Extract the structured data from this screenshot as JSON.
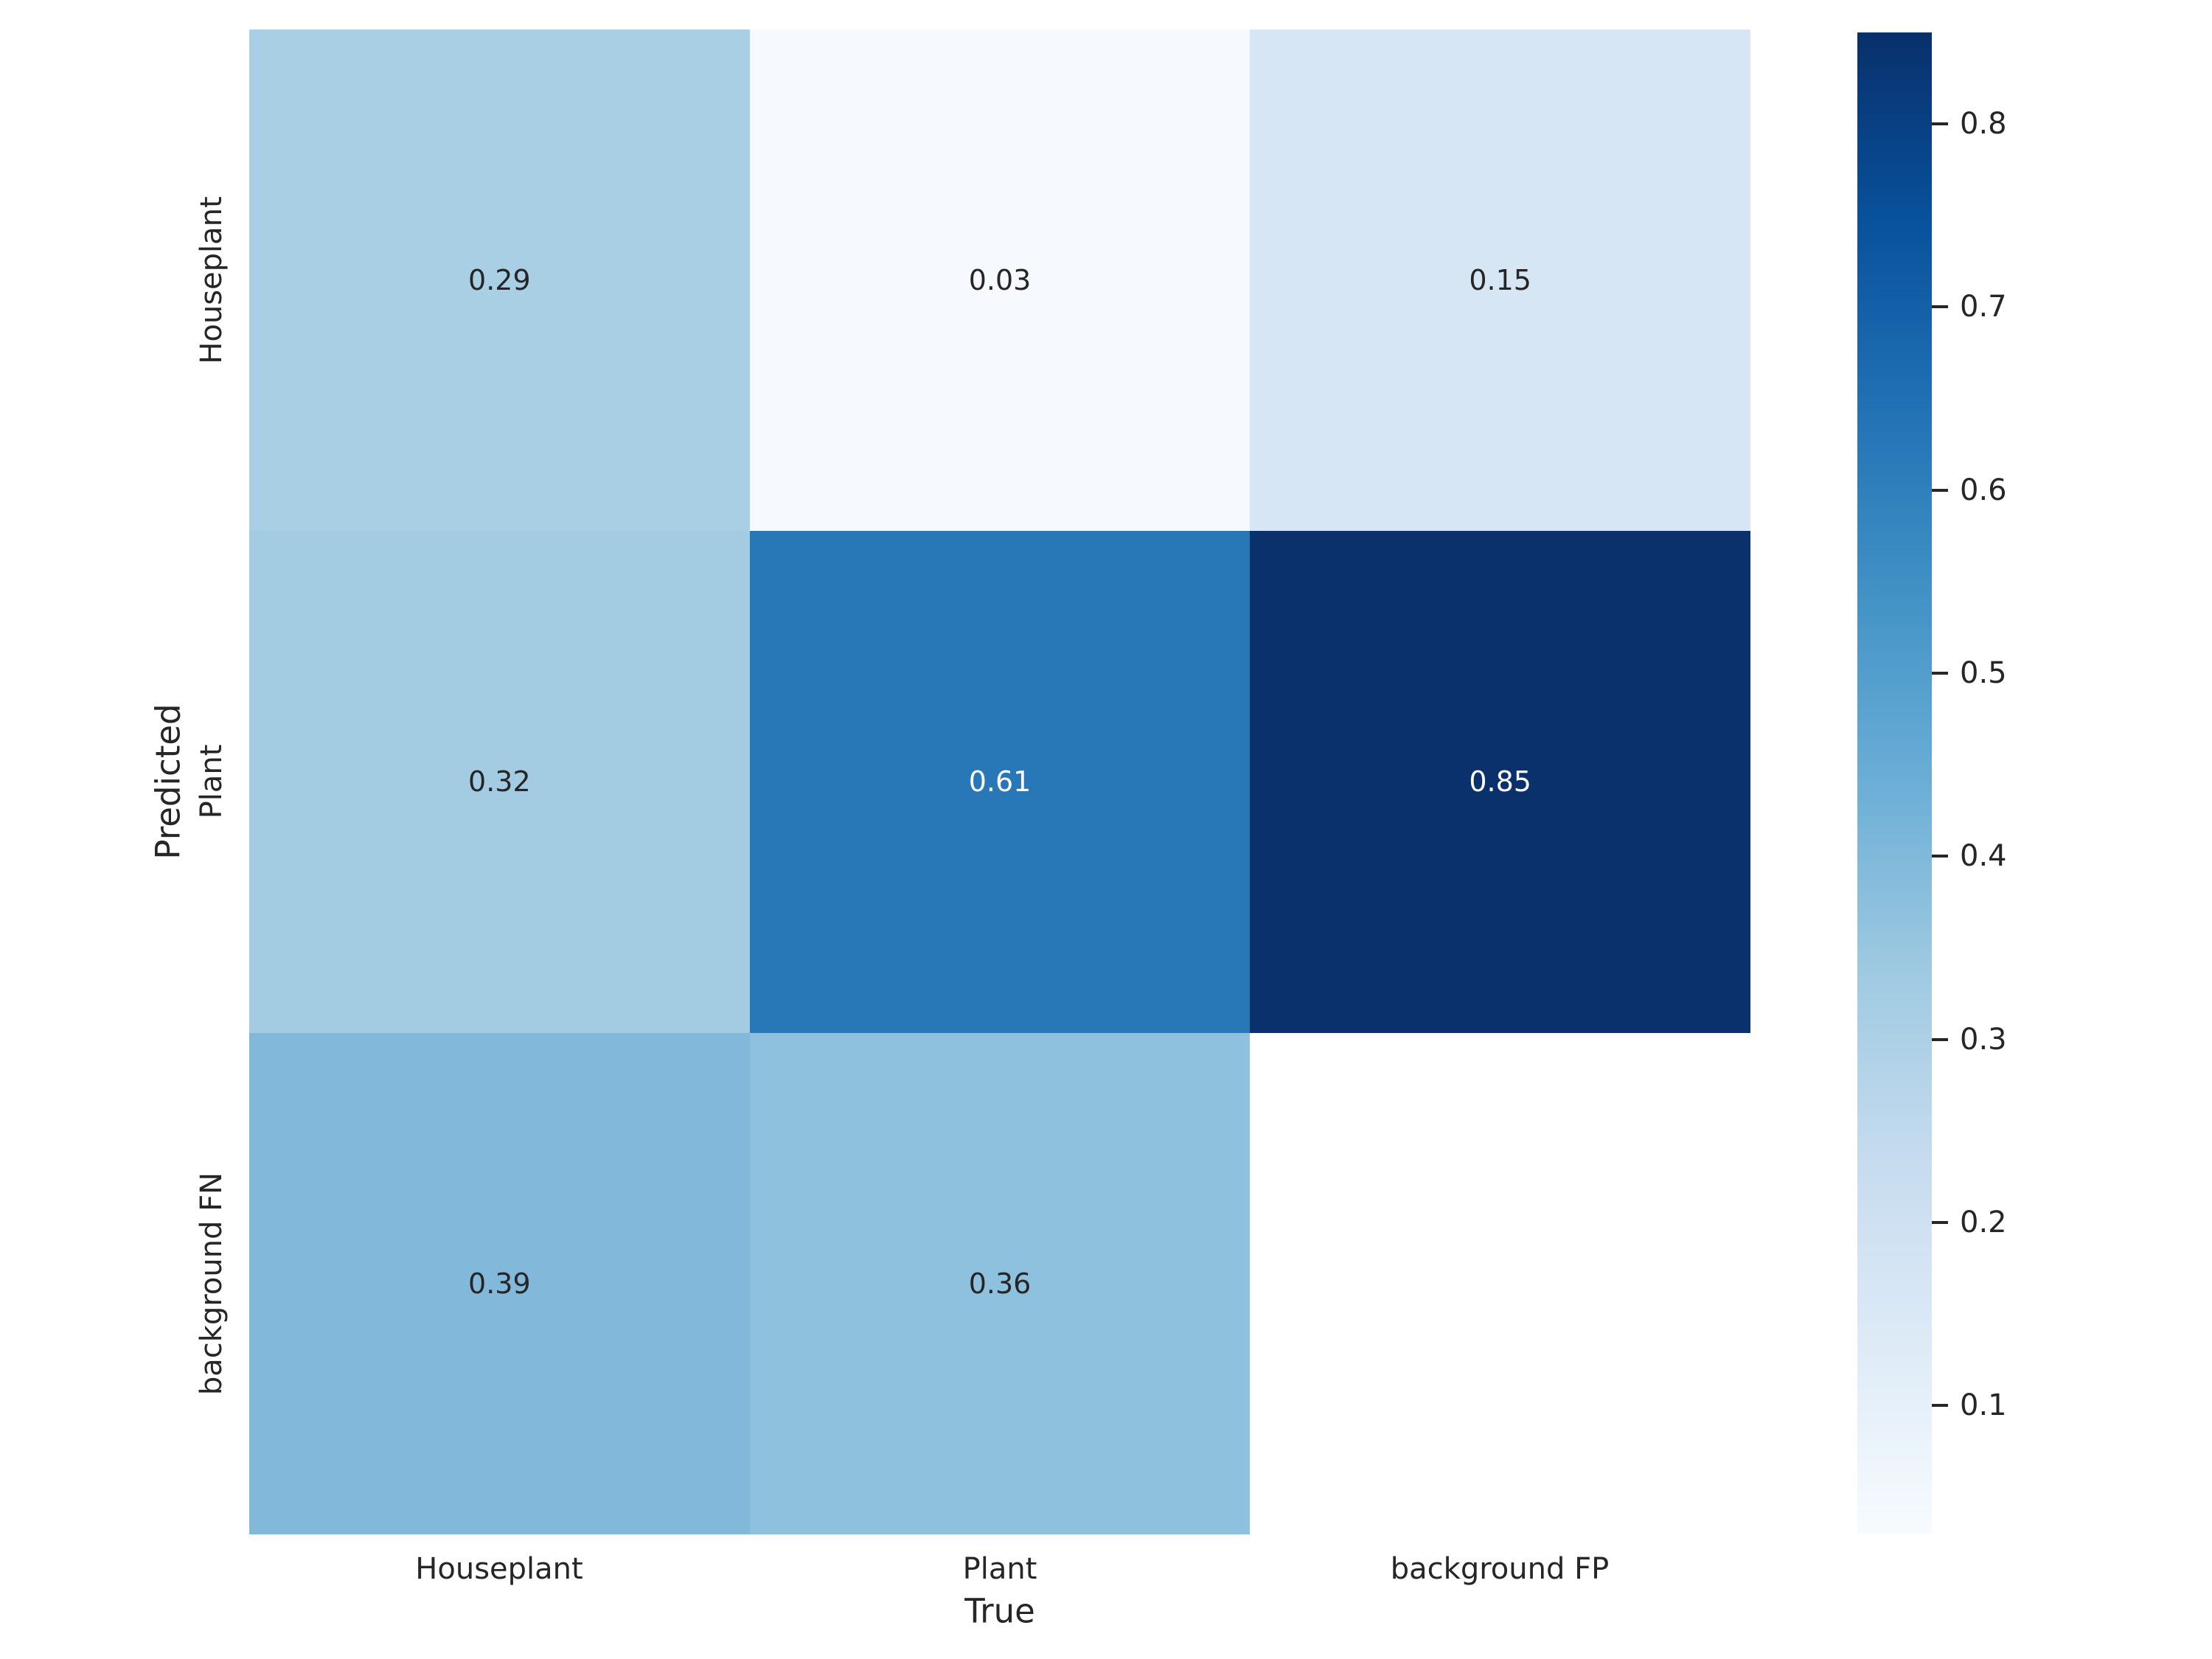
{
  "figure": {
    "background": "#ffffff",
    "text_color": "#262626"
  },
  "chart_data": {
    "type": "heatmap",
    "title": "",
    "xlabel": "True",
    "ylabel": "Predicted",
    "x_categories": [
      "Houseplant",
      "Plant",
      "background FP"
    ],
    "y_categories": [
      "Houseplant",
      "Plant",
      "background FN"
    ],
    "values": [
      [
        0.29,
        0.03,
        0.15
      ],
      [
        0.32,
        0.61,
        0.85
      ],
      [
        0.39,
        0.36,
        null
      ]
    ],
    "colormap": "Blues",
    "vmin": 0.03,
    "vmax": 0.85,
    "grid": false,
    "legend_position": "colorbar-right",
    "cells": [
      {
        "label": "0.29",
        "bg": "#a9cfe5",
        "fg": "#262626"
      },
      {
        "label": "0.03",
        "bg": "#f6fafe",
        "fg": "#262626"
      },
      {
        "label": "0.15",
        "bg": "#d7e6f5",
        "fg": "#262626"
      },
      {
        "label": "0.32",
        "bg": "#a3cce3",
        "fg": "#262626"
      },
      {
        "label": "0.61",
        "bg": "#2878b8",
        "fg": "#ffffff"
      },
      {
        "label": "0.85",
        "bg": "#0a316b",
        "fg": "#ffffff"
      },
      {
        "label": "0.39",
        "bg": "#82b9db",
        "fg": "#262626"
      },
      {
        "label": "0.36",
        "bg": "#8ec1de",
        "fg": "#262626"
      },
      {
        "label": "",
        "bg": "#ffffff",
        "fg": "#262626"
      }
    ],
    "colorbar": {
      "ticks": [
        {
          "label": "0.8",
          "value": 0.8,
          "top_pct": 6.1
        },
        {
          "label": "0.7",
          "value": 0.7,
          "top_pct": 18.29
        },
        {
          "label": "0.6",
          "value": 0.6,
          "top_pct": 30.49
        },
        {
          "label": "0.5",
          "value": 0.5,
          "top_pct": 42.68
        },
        {
          "label": "0.4",
          "value": 0.4,
          "top_pct": 54.88
        },
        {
          "label": "0.3",
          "value": 0.3,
          "top_pct": 67.07
        },
        {
          "label": "0.2",
          "value": 0.2,
          "top_pct": 79.27
        },
        {
          "label": "0.1",
          "value": 0.1,
          "top_pct": 91.46
        }
      ]
    }
  }
}
